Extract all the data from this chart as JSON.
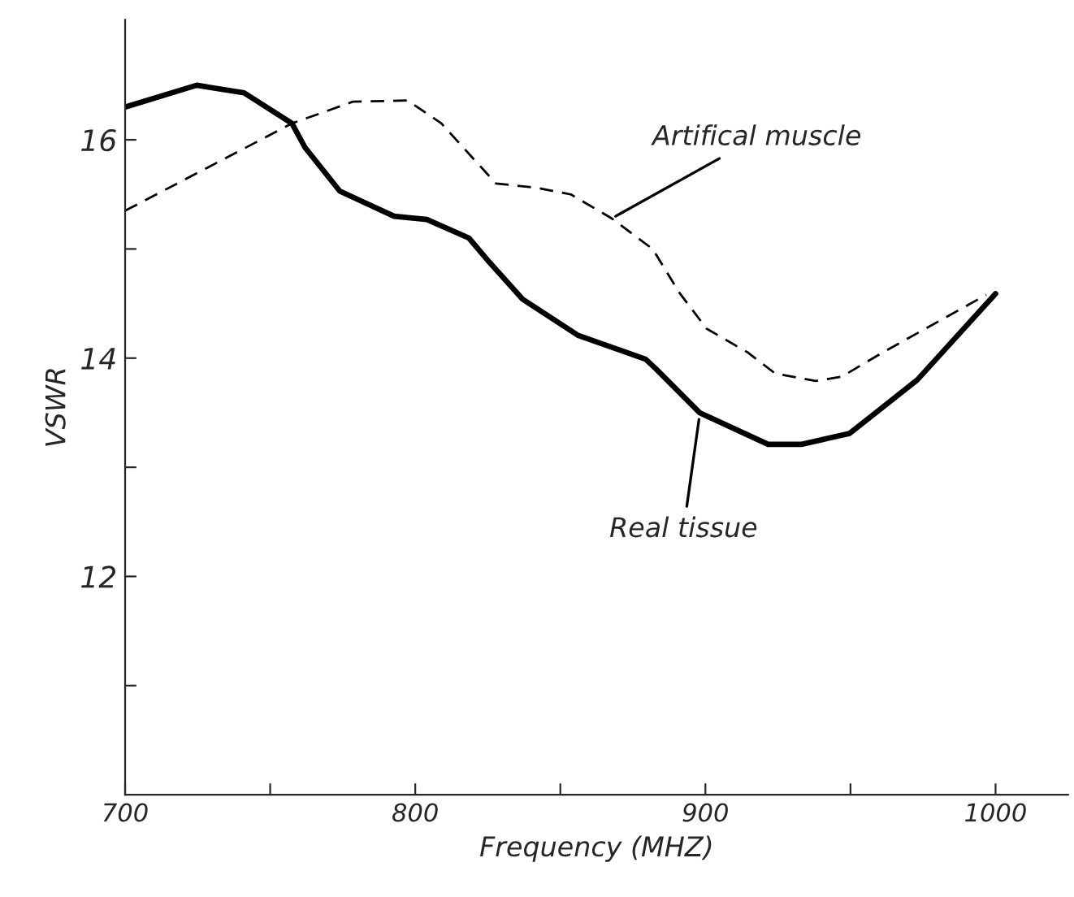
{
  "chart_data": {
    "type": "line",
    "xlabel": "Frequency (MHZ)",
    "ylabel": "VSWR",
    "xlim": [
      700,
      1025
    ],
    "ylim": [
      10,
      17.1
    ],
    "xticks": [
      700,
      {
        "value": 750,
        "label": null
      },
      800,
      {
        "value": 850,
        "label": null
      },
      900,
      {
        "value": 950,
        "label": null
      },
      1000
    ],
    "yticks": [
      {
        "value": 11,
        "label": null
      },
      12,
      {
        "value": 13,
        "label": null
      },
      14,
      {
        "value": 15,
        "label": null
      },
      16
    ],
    "grid": false,
    "legend": false,
    "marker": "none",
    "series": [
      {
        "color": "#000000",
        "line_style": "solid",
        "x": [
          700,
          724.7,
          741,
          757.5,
          762,
          774,
          792.7,
          804,
          818.5,
          825.5,
          837,
          856,
          879.4,
          883,
          898,
          921.6,
          933,
          949.7,
          973,
          1000
        ],
        "values": [
          16.3,
          16.5,
          16.43,
          16.15,
          15.93,
          15.53,
          15.3,
          15.27,
          15.1,
          14.88,
          14.54,
          14.21,
          13.99,
          13.9,
          13.5,
          13.21,
          13.21,
          13.31,
          13.8,
          14.59
        ]
      },
      {
        "color": "#000000",
        "line_style": "dashed",
        "x": [
          700,
          757.5,
          778.6,
          797.4,
          809,
          827.8,
          841.8,
          853.6,
          867.7,
          881.8,
          891,
          900.4,
          914.7,
          924,
          938,
          947,
          961,
          996.8
        ],
        "values": [
          15.35,
          16.15,
          16.35,
          16.36,
          16.15,
          15.6,
          15.56,
          15.5,
          15.28,
          15.0,
          14.6,
          14.27,
          14.05,
          13.86,
          13.79,
          13.83,
          14.05,
          14.58
        ]
      }
    ],
    "annotations": [
      {
        "text": "Artifical muscle",
        "x": 867.7,
        "y": 15.28
      },
      {
        "text": "Real tissue",
        "x": 898,
        "y": 13.48
      }
    ]
  }
}
